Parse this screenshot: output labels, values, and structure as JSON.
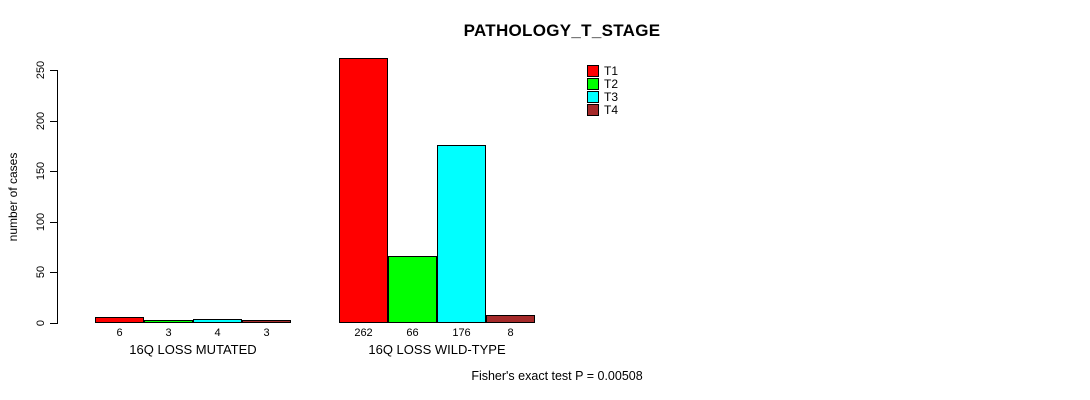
{
  "title": "PATHOLOGY_T_STAGE",
  "chart_data": {
    "type": "bar",
    "title": "PATHOLOGY_T_STAGE",
    "xlabel": "",
    "ylabel": "number of cases",
    "ylim": [
      0,
      250
    ],
    "yticks": [
      0,
      50,
      100,
      150,
      200,
      250
    ],
    "grid": false,
    "grouped": true,
    "categories": [
      "16Q LOSS MUTATED",
      "16Q LOSS WILD-TYPE"
    ],
    "series": [
      {
        "name": "T1",
        "color": "#ff0000",
        "values": [
          6,
          262
        ]
      },
      {
        "name": "T2",
        "color": "#00ff00",
        "values": [
          3,
          66
        ]
      },
      {
        "name": "T3",
        "color": "#00ffff",
        "values": [
          4,
          176
        ]
      },
      {
        "name": "T4",
        "color": "#a52a2a",
        "values": [
          3,
          8
        ]
      }
    ],
    "bar_value_labels": true,
    "legend_position": "top-right",
    "legend_entries": [
      "T1",
      "T2",
      "T3",
      "T4"
    ],
    "annotation": "Fisher's exact test P = 0.00508"
  }
}
